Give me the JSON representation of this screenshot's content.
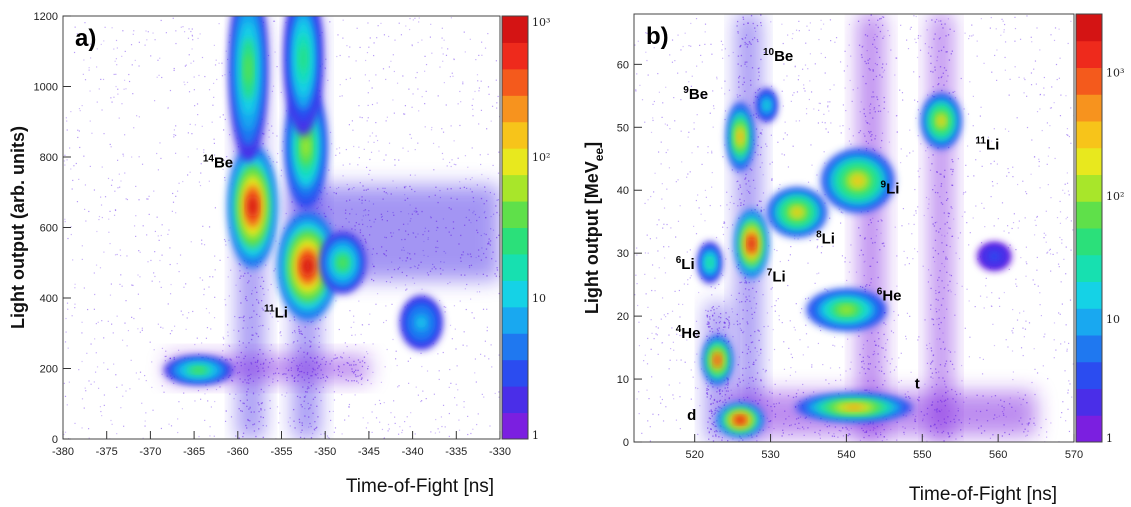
{
  "chart_data": [
    {
      "type": "heatmap",
      "panel_label": "a)",
      "xlabel": "Time-of-Fight [ns]",
      "ylabel": "Light output (arb. units)",
      "xlim": [
        -380,
        -330
      ],
      "ylim": [
        0,
        1200
      ],
      "xticks": [
        -380,
        -375,
        -370,
        -365,
        -360,
        -355,
        -350,
        -345,
        -340,
        -335,
        -330
      ],
      "yticks": [
        0,
        200,
        400,
        600,
        800,
        1000,
        1200
      ],
      "colorbar": {
        "scale": "log",
        "range": [
          1,
          1000
        ],
        "labels": [
          "1",
          "10",
          "10²",
          "10³"
        ],
        "label_values": [
          1,
          10,
          100,
          1000
        ]
      },
      "annotations": [
        {
          "text": "Be",
          "mass": "14",
          "x": -364,
          "y": 770
        },
        {
          "text": "Li",
          "mass": "11",
          "x": -357,
          "y": 345
        }
      ],
      "blobs": [
        {
          "x": -358.3,
          "y": 660,
          "sx": 1.3,
          "sy": 80,
          "level": 1.0
        },
        {
          "x": -352.0,
          "y": 490,
          "sx": 1.6,
          "sy": 70,
          "level": 1.0
        },
        {
          "x": -352.2,
          "y": 830,
          "sx": 1.1,
          "sy": 80,
          "level": 0.62
        },
        {
          "x": -358.8,
          "y": 1050,
          "sx": 1.0,
          "sy": 120,
          "level": 0.55
        },
        {
          "x": -352.5,
          "y": 1080,
          "sx": 1.0,
          "sy": 100,
          "level": 0.45
        },
        {
          "x": -364.5,
          "y": 195,
          "sx": 1.8,
          "sy": 18,
          "level": 0.55
        },
        {
          "x": -348.0,
          "y": 500,
          "sx": 1.2,
          "sy": 40,
          "level": 0.5
        },
        {
          "x": -339.0,
          "y": 330,
          "sx": 1.1,
          "sy": 35,
          "level": 0.35
        }
      ],
      "bands": [
        {
          "x1": -360,
          "x2": -357,
          "y1": 0,
          "y2": 1200,
          "level": 0.25
        },
        {
          "x1": -353.7,
          "x2": -350.6,
          "y1": 0,
          "y2": 1200,
          "level": 0.25
        },
        {
          "x1": -354,
          "x2": -330,
          "y1": 450,
          "y2": 720,
          "level": 0.18
        },
        {
          "x1": -368,
          "x2": -345,
          "y1": 165,
          "y2": 235,
          "level": 0.12
        }
      ]
    },
    {
      "type": "heatmap",
      "panel_label": "b)",
      "xlabel": "Time-of-Fight [ns]",
      "ylabel": "Light output [MeVee]",
      "ylabel_main": "Light output [MeV",
      "ylabel_sub": "ee",
      "ylabel_end": "]",
      "xlim": [
        512,
        570
      ],
      "ylim": [
        0,
        68
      ],
      "xticks": [
        520,
        530,
        540,
        550,
        560,
        570
      ],
      "yticks": [
        0,
        10,
        20,
        30,
        40,
        50,
        60
      ],
      "colorbar": {
        "scale": "log",
        "range": [
          1,
          3000
        ],
        "labels": [
          "1",
          "10",
          "10²",
          "10³"
        ],
        "label_values": [
          1,
          10,
          100,
          1000
        ]
      },
      "annotations": [
        {
          "text": "Be",
          "mass": "10",
          "x": 529,
          "y": 60.5
        },
        {
          "text": "Be",
          "mass": "9",
          "x": 518.5,
          "y": 54.5
        },
        {
          "text": "Li",
          "mass": "11",
          "x": 557,
          "y": 46.5
        },
        {
          "text": "Li",
          "mass": "9",
          "x": 544.5,
          "y": 39.5
        },
        {
          "text": "Li",
          "mass": "8",
          "x": 536,
          "y": 31.5
        },
        {
          "text": "Li",
          "mass": "6",
          "x": 517.5,
          "y": 27.5
        },
        {
          "text": "Li",
          "mass": "7",
          "x": 529.5,
          "y": 25.5
        },
        {
          "text": "He",
          "mass": "6",
          "x": 544,
          "y": 22.5
        },
        {
          "text": "He",
          "mass": "4",
          "x": 517.5,
          "y": 16.5
        },
        {
          "text": "t",
          "mass": "",
          "x": 549,
          "y": 8.5
        },
        {
          "text": "d",
          "mass": "",
          "x": 519,
          "y": 3.5
        }
      ],
      "blobs": [
        {
          "x": 526.0,
          "y": 3.5,
          "sx": 1.4,
          "sy": 1.2,
          "level": 1.0
        },
        {
          "x": 541.0,
          "y": 5.5,
          "sx": 3.5,
          "sy": 1.0,
          "level": 0.8
        },
        {
          "x": 523.0,
          "y": 13.0,
          "sx": 0.9,
          "sy": 1.8,
          "level": 0.95
        },
        {
          "x": 527.5,
          "y": 31.5,
          "sx": 1.0,
          "sy": 2.5,
          "level": 1.0
        },
        {
          "x": 526.0,
          "y": 48.5,
          "sx": 0.8,
          "sy": 2.5,
          "level": 0.8
        },
        {
          "x": 533.5,
          "y": 36.5,
          "sx": 1.8,
          "sy": 1.8,
          "level": 0.7
        },
        {
          "x": 541.5,
          "y": 41.5,
          "sx": 2.2,
          "sy": 2.3,
          "level": 0.7
        },
        {
          "x": 552.5,
          "y": 51.0,
          "sx": 1.2,
          "sy": 2.0,
          "level": 0.75
        },
        {
          "x": 540.0,
          "y": 21.0,
          "sx": 2.4,
          "sy": 1.5,
          "level": 0.6
        },
        {
          "x": 522.0,
          "y": 28.5,
          "sx": 0.7,
          "sy": 1.5,
          "level": 0.45
        },
        {
          "x": 529.5,
          "y": 53.5,
          "sx": 0.6,
          "sy": 1.2,
          "level": 0.4
        },
        {
          "x": 559.5,
          "y": 29.5,
          "sx": 1.0,
          "sy": 1.0,
          "level": 0.12
        }
      ],
      "bands": [
        {
          "x1": 525.5,
          "x2": 528.7,
          "y1": 0,
          "y2": 68,
          "level": 0.25
        },
        {
          "x1": 541.5,
          "x2": 545.0,
          "y1": 0,
          "y2": 68,
          "level": 0.12
        },
        {
          "x1": 551.0,
          "x2": 554.0,
          "y1": 0,
          "y2": 68,
          "level": 0.1
        },
        {
          "x1": 521.5,
          "x2": 524.5,
          "y1": 0,
          "y2": 22,
          "level": 0.2
        },
        {
          "x1": 524,
          "x2": 565,
          "y1": 1,
          "y2": 8,
          "level": 0.15
        }
      ]
    }
  ]
}
